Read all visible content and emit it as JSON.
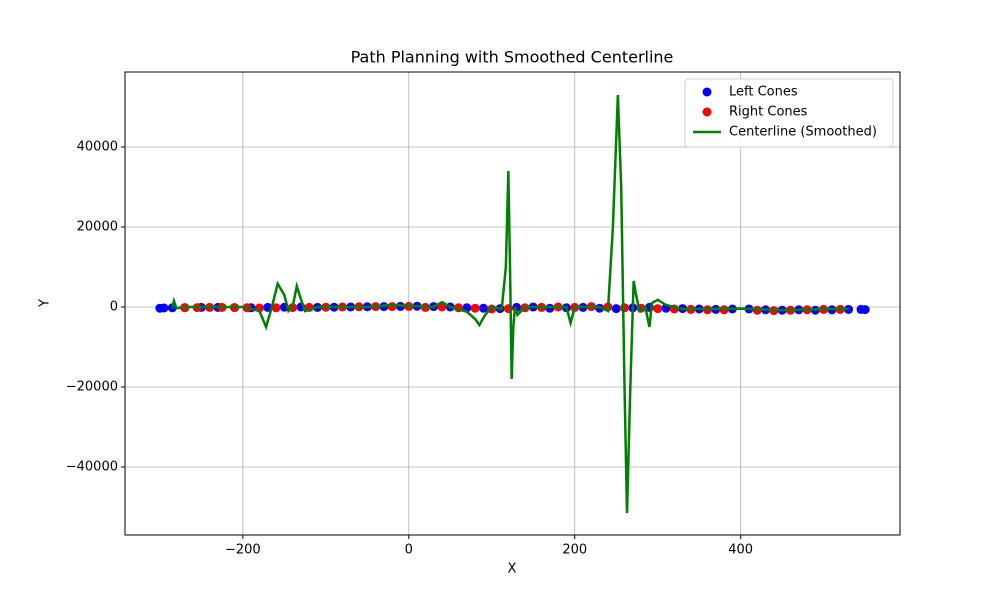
{
  "chart_data": {
    "type": "scatter",
    "title": "Path Planning with Smoothed Centerline",
    "x_label": "X",
    "y_label": "Y",
    "xlim": [
      -342,
      592
    ],
    "ylim": [
      -57000,
      58750
    ],
    "xticks": [
      {
        "value": -200,
        "label": "−200"
      },
      0,
      200,
      400
    ],
    "yticks": [
      {
        "value": -40000,
        "label": "−40000"
      },
      {
        "value": -20000,
        "label": "−20000"
      },
      0,
      20000,
      40000
    ],
    "grid": true,
    "legend": "upper right",
    "series": [
      {
        "name": "Left Cones",
        "type": "scatter",
        "color": "#0000ff",
        "x": [
          -300,
          -295,
          -285,
          -270,
          -250,
          -230,
          -210,
          -190,
          -170,
          -150,
          -130,
          -110,
          -90,
          -70,
          -50,
          -30,
          -10,
          10,
          30,
          50,
          70,
          90,
          110,
          130,
          150,
          170,
          190,
          210,
          230,
          250,
          270,
          290,
          310,
          330,
          350,
          370,
          390,
          410,
          430,
          450,
          470,
          490,
          510,
          530,
          545,
          550
        ],
        "values": [
          -300,
          -250,
          -200,
          -150,
          -100,
          -100,
          -150,
          -200,
          -100,
          -50,
          0,
          -100,
          -50,
          0,
          50,
          100,
          150,
          200,
          100,
          0,
          -200,
          -300,
          -400,
          -100,
          0,
          -300,
          -200,
          -100,
          -300,
          -400,
          -200,
          -100,
          -300,
          -400,
          -500,
          -600,
          -500,
          -500,
          -700,
          -800,
          -700,
          -800,
          -700,
          -600,
          -600,
          -650
        ]
      },
      {
        "name": "Right Cones",
        "type": "scatter",
        "color": "#ff0000",
        "x": [
          -270,
          -255,
          -240,
          -225,
          -210,
          -195,
          -180,
          -160,
          -140,
          -120,
          -100,
          -80,
          -60,
          -40,
          -20,
          0,
          20,
          40,
          60,
          80,
          100,
          120,
          140,
          160,
          180,
          200,
          220,
          240,
          260,
          280,
          300,
          320,
          340,
          360,
          380,
          420,
          440,
          460,
          480,
          500,
          520
        ],
        "values": [
          -200,
          -150,
          -100,
          -100,
          -150,
          -200,
          -250,
          -200,
          -150,
          -100,
          -50,
          0,
          50,
          100,
          100,
          150,
          -100,
          0,
          -200,
          -300,
          -500,
          -400,
          -200,
          -100,
          0,
          -100,
          100,
          0,
          -200,
          -300,
          -400,
          -500,
          -600,
          -700,
          -700,
          -800,
          -900,
          -800,
          -700,
          -600,
          -600
        ]
      },
      {
        "name": "Centerline (Smoothed)",
        "type": "line",
        "color": "#008000",
        "x": [
          -285,
          -283,
          -280,
          -270,
          -250,
          -200,
          -180,
          -172,
          -165,
          -158,
          -150,
          -145,
          -140,
          -135,
          -130,
          -125,
          -110,
          -50,
          -20,
          0,
          30,
          40,
          50,
          70,
          80,
          85,
          92,
          100,
          112,
          117,
          120,
          122,
          124,
          126,
          128,
          131,
          140,
          190,
          195,
          200,
          230,
          240,
          246,
          252,
          256,
          260,
          263,
          267,
          271,
          274,
          278,
          285,
          290,
          293,
          300,
          310,
          330,
          400,
          450,
          500,
          530
        ],
        "values": [
          -300,
          1500,
          -300,
          0,
          0,
          0,
          -1000,
          -5000,
          0,
          5800,
          3000,
          -1000,
          0,
          5200,
          2000,
          -1000,
          0,
          0,
          500,
          300,
          0,
          1200,
          0,
          -1200,
          -3000,
          -4500,
          -2000,
          0,
          -500,
          10000,
          34000,
          10000,
          -18000,
          -5000,
          0,
          -2000,
          0,
          0,
          -4000,
          0,
          0,
          -1000,
          20000,
          53000,
          30000,
          -20000,
          -51500,
          -20000,
          6500,
          3000,
          -1000,
          0,
          -5000,
          1000,
          1800,
          500,
          -500,
          -400,
          -800,
          -500,
          -500
        ]
      }
    ]
  }
}
